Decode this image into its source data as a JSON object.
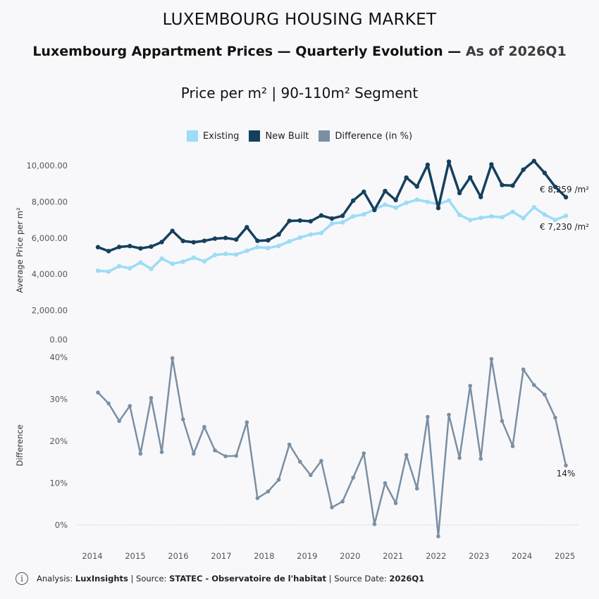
{
  "supertitle": "LUXEMBOURG HOUSING MARKET",
  "title_main": "Luxembourg Appartment Prices — Quarterly Evolution — ",
  "title_asof": "As of 2026Q1",
  "subtitle": "Price per m² | 90-110m² Segment",
  "legend": {
    "existing": "Existing",
    "new_built": "New Built",
    "difference": "Difference (in %)"
  },
  "colors": {
    "existing": "#9ddcf6",
    "new_built": "#15405d",
    "difference": "#7b8fa3",
    "background": "#f8f8fb"
  },
  "footer": {
    "analysis_label": "Analysis: ",
    "analysis_value": "LuxInsights",
    "source_label": " | Source: ",
    "source_value": "STATEC - Observatoire de l'habitat",
    "date_label": " | Source Date: ",
    "date_value": "2026Q1"
  },
  "chart_data": [
    {
      "type": "line",
      "ylabel": "Average Price per m²",
      "ylim": [
        0,
        10500
      ],
      "yticks": [
        0,
        2000,
        4000,
        6000,
        8000,
        10000
      ],
      "ytick_labels": [
        "0.00",
        "2,000.00",
        "4,000.00",
        "6,000.00",
        "8,000.00",
        "10,000.00"
      ],
      "grid": false,
      "legend": "top-center",
      "x_quarters": [
        "2014Q1",
        "2014Q2",
        "2014Q3",
        "2014Q4",
        "2015Q1",
        "2015Q2",
        "2015Q3",
        "2015Q4",
        "2016Q1",
        "2016Q2",
        "2016Q3",
        "2016Q4",
        "2017Q1",
        "2017Q2",
        "2017Q3",
        "2017Q4",
        "2018Q1",
        "2018Q2",
        "2018Q3",
        "2018Q4",
        "2019Q1",
        "2019Q2",
        "2019Q3",
        "2019Q4",
        "2020Q1",
        "2020Q2",
        "2020Q3",
        "2020Q4",
        "2021Q1",
        "2021Q2",
        "2021Q3",
        "2021Q4",
        "2022Q1",
        "2022Q2",
        "2022Q3",
        "2022Q4",
        "2023Q1",
        "2023Q2",
        "2023Q3",
        "2023Q4",
        "2024Q1",
        "2024Q2",
        "2024Q3",
        "2024Q4",
        "2025Q1"
      ],
      "series": [
        {
          "name": "Existing",
          "values": [
            4200,
            4150,
            4450,
            4330,
            4650,
            4300,
            4870,
            4580,
            4700,
            4920,
            4720,
            5070,
            5130,
            5090,
            5300,
            5500,
            5450,
            5570,
            5820,
            6030,
            6200,
            6280,
            6800,
            6870,
            7200,
            7310,
            7580,
            7850,
            7680,
            7950,
            8120,
            8000,
            7870,
            8080,
            7280,
            7000,
            7120,
            7200,
            7150,
            7450,
            7100,
            7700,
            7300,
            7000,
            7230
          ]
        },
        {
          "name": "New Built",
          "values": [
            5500,
            5280,
            5510,
            5560,
            5430,
            5530,
            5780,
            6400,
            5840,
            5770,
            5850,
            5970,
            6010,
            5920,
            6600,
            5850,
            5880,
            6200,
            6950,
            6970,
            6930,
            7250,
            7080,
            7230,
            8070,
            8560,
            7550,
            8600,
            8100,
            9340,
            8850,
            10050,
            7660,
            10220,
            8490,
            9350,
            8270,
            10070,
            8930,
            8900,
            9780,
            10260,
            9600,
            8830,
            8259
          ]
        }
      ],
      "end_labels": {
        "new_built": "€ 8,259 /m²",
        "existing": "€ 7,230 /m²"
      }
    },
    {
      "type": "line",
      "ylabel": "Difference",
      "ylim": [
        -6,
        41
      ],
      "yticks": [
        0,
        10,
        20,
        30,
        40
      ],
      "ytick_labels": [
        "0%",
        "10%",
        "20%",
        "30%",
        "40%"
      ],
      "x_tick_labels": [
        "2014",
        "2015",
        "2016",
        "2017",
        "2018",
        "2019",
        "2020",
        "2021",
        "2022",
        "2023",
        "2024",
        "2025"
      ],
      "series": [
        {
          "name": "Difference (in %)",
          "values": [
            31.6,
            29,
            24.8,
            28.4,
            17,
            30.3,
            17.4,
            39.8,
            25.2,
            17,
            23.4,
            17.8,
            16.4,
            16.5,
            24.5,
            6.4,
            8,
            10.8,
            19.2,
            15.1,
            11.9,
            15.3,
            4.2,
            5.6,
            11.3,
            17.1,
            0.2,
            10,
            5.2,
            16.7,
            8.7,
            25.8,
            -2.7,
            26.3,
            16,
            33.2,
            15.8,
            39.6,
            24.8,
            18.8,
            37.1,
            33.4,
            31.1,
            25.6,
            14.2
          ]
        }
      ],
      "end_label": "14%"
    }
  ]
}
